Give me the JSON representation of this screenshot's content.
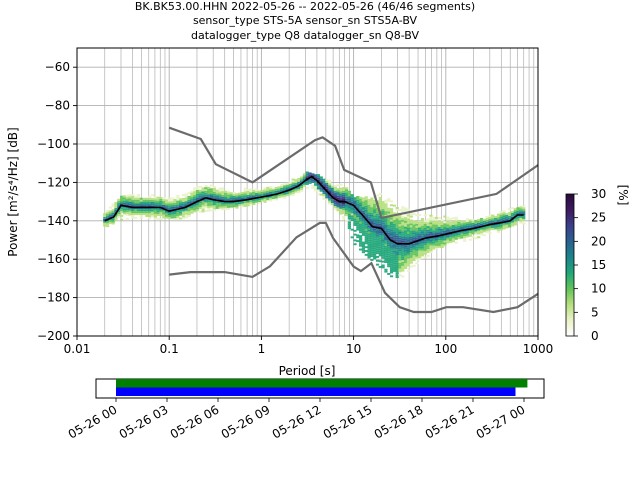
{
  "title_lines": [
    "BK.BK53.00.HHN   2022-05-26 -- 2022-05-26  (46/46 segments)",
    "sensor_type STS-5A sensor_sn STS5A-BV",
    "datalogger_type Q8 datalogger_sn Q8-BV"
  ],
  "chart_data": [
    {
      "type": "heatmap",
      "title": "BK.BK53.00.HHN   2022-05-26 -- 2022-05-26  (46/46 segments)",
      "xlabel": "Period [s]",
      "ylabel": "Power [m²/s⁴/Hz] [dB]",
      "x_scale": "log",
      "xlim": [
        0.01,
        1000
      ],
      "ylim": [
        -200,
        -50
      ],
      "x_ticks": [
        0.01,
        0.1,
        1,
        10,
        100,
        1000
      ],
      "x_tick_labels": [
        "0.01",
        "0.1",
        "1",
        "10",
        "100",
        "1000"
      ],
      "y_ticks": [
        -200,
        -180,
        -160,
        -140,
        -120,
        -100,
        -80,
        -60
      ],
      "y_tick_labels": [
        "−200",
        "−180",
        "−160",
        "−140",
        "−120",
        "−100",
        "−80",
        "−60"
      ],
      "grid": true,
      "colorbar": {
        "label": "[%]",
        "range": [
          0,
          30
        ],
        "ticks": [
          0,
          5,
          10,
          15,
          20,
          25,
          30
        ],
        "tick_labels": [
          "0",
          "5",
          "10",
          "15",
          "20",
          "25",
          "30"
        ],
        "colormap": [
          "#ffffff",
          "#e9f2c9",
          "#b6df7e",
          "#62c35a",
          "#21a77a",
          "#1d848b",
          "#2a6190",
          "#3b3f8a",
          "#3d1a5e",
          "#2a0a3b"
        ]
      },
      "median_curve": {
        "color": "#000000",
        "x": [
          0.02,
          0.025,
          0.03,
          0.04,
          0.06,
          0.08,
          0.1,
          0.15,
          0.2,
          0.25,
          0.3,
          0.4,
          0.5,
          0.7,
          0.9,
          1.2,
          1.5,
          2,
          2.5,
          3,
          3.5,
          4,
          5,
          6,
          7,
          8,
          10,
          13,
          16,
          20,
          25,
          30,
          40,
          60,
          80,
          100,
          150,
          200,
          300,
          400,
          500,
          600,
          700
        ],
        "y": [
          -140,
          -138,
          -132,
          -133,
          -133,
          -133,
          -135,
          -133,
          -130,
          -128,
          -129,
          -130,
          -130,
          -129,
          -128,
          -127,
          -126,
          -124,
          -122,
          -119,
          -117,
          -119,
          -124,
          -128,
          -130,
          -130,
          -132,
          -138,
          -143,
          -144,
          -150,
          -152,
          -152,
          -149,
          -148,
          -147,
          -145,
          -144,
          -142,
          -141,
          -140,
          -137,
          -137
        ]
      },
      "heatmap_band": {
        "x": [
          0.02,
          0.03,
          0.04,
          0.06,
          0.1,
          0.15,
          0.2,
          0.3,
          0.5,
          0.8,
          1,
          2,
          3,
          4,
          6,
          8,
          10,
          15,
          20,
          30,
          50,
          100,
          200,
          300,
          400,
          600,
          700
        ],
        "y_low": [
          -144,
          -140,
          -139,
          -139,
          -140,
          -139,
          -136,
          -135,
          -134,
          -132,
          -131,
          -128,
          -124,
          -126,
          -133,
          -140,
          -152,
          -160,
          -165,
          -172,
          -162,
          -153,
          -150,
          -147,
          -146,
          -143,
          -142
        ],
        "y_high": [
          -136,
          -128,
          -126,
          -127,
          -128,
          -127,
          -122,
          -122,
          -124,
          -123,
          -124,
          -120,
          -115,
          -116,
          -120,
          -122,
          -128,
          -128,
          -126,
          -132,
          -137,
          -138,
          -140,
          -138,
          -135,
          -133,
          -133
        ]
      },
      "noise_models": [
        {
          "name": "high",
          "color": "#6b6b6b",
          "x": [
            0.1,
            0.22,
            0.32,
            0.8,
            3.8,
            4.6,
            6.3,
            7.9,
            15.4,
            20,
            354.8,
            1000
          ],
          "y": [
            -91.5,
            -97.4,
            -110.5,
            -120,
            -98,
            -96.5,
            -101,
            -113.5,
            -120,
            -138.5,
            -126,
            -111
          ]
        },
        {
          "name": "low",
          "color": "#6b6b6b",
          "x": [
            0.1,
            0.17,
            0.4,
            0.8,
            1.24,
            2.4,
            4.3,
            5,
            6,
            10,
            12,
            15.6,
            21.9,
            31.6,
            45,
            70,
            101,
            154,
            328,
            600,
            1000
          ],
          "y": [
            -168,
            -166.7,
            -166.7,
            -169.2,
            -163.7,
            -148.6,
            -141.1,
            -141.1,
            -149,
            -163.8,
            -166.2,
            -162.1,
            -177.5,
            -185,
            -187.5,
            -187.5,
            -185,
            -185,
            -187.5,
            -185,
            -178
          ]
        }
      ]
    },
    {
      "type": "timeline",
      "x_range": [
        "05-26 00",
        "05-27 00"
      ],
      "x_tick_labels": [
        "05-26 00",
        "05-26 03",
        "05-26 06",
        "05-26 09",
        "05-26 12",
        "05-26 15",
        "05-26 18",
        "05-26 21",
        "05-27 00"
      ],
      "bars": [
        {
          "color": "#008000",
          "start_hour": 0,
          "end_hour": 24.2
        },
        {
          "color": "#0000ff",
          "start_hour": 0,
          "end_hour": 23.5
        }
      ]
    }
  ]
}
